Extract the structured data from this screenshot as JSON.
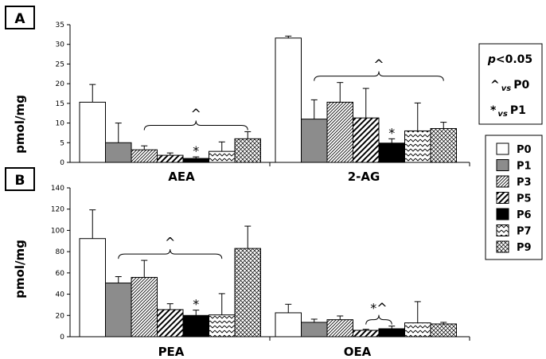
{
  "chart_data": [
    {
      "type": "bar",
      "panel_label": "A",
      "ylabel": "pmol/mg",
      "ylim": [
        0,
        35
      ],
      "yticks": [
        0,
        5,
        10,
        15,
        20,
        25,
        30,
        35
      ],
      "groups": [
        {
          "name": "AEA",
          "values": [
            15.3,
            5.0,
            3.2,
            1.8,
            1.0,
            2.8,
            6.0
          ],
          "errors": [
            4.5,
            5.0,
            1.0,
            0.6,
            0.4,
            2.4,
            1.8
          ],
          "annotations": [
            {
              "text": "*",
              "bar": "P6"
            }
          ],
          "brace": {
            "from": "P3",
            "to": "P9",
            "text": "^"
          }
        },
        {
          "name": "2-AG",
          "values": [
            31.6,
            11.0,
            15.3,
            11.3,
            4.9,
            8.0,
            8.6
          ],
          "errors": [
            0.5,
            4.9,
            5.0,
            7.5,
            1.1,
            7.1,
            1.6
          ],
          "annotations": [
            {
              "text": "*",
              "bar": "P6"
            }
          ],
          "brace": {
            "from": "P1",
            "to": "P9",
            "text": "^"
          }
        }
      ]
    },
    {
      "type": "bar",
      "panel_label": "B",
      "ylabel": "pmol/mg",
      "ylim": [
        0,
        140
      ],
      "yticks": [
        0,
        20,
        40,
        60,
        80,
        100,
        120,
        140
      ],
      "groups": [
        {
          "name": "PEA",
          "values": [
            92.3,
            50.5,
            55.8,
            25.5,
            20.0,
            20.5,
            83.0
          ],
          "errors": [
            27.0,
            6.0,
            16.0,
            5.5,
            5.0,
            20.0,
            21.0
          ],
          "annotations": [
            {
              "text": "*",
              "bar": "P6"
            }
          ],
          "brace": {
            "from": "P1",
            "to": "P7",
            "text": "^"
          }
        },
        {
          "name": "OEA",
          "values": [
            22.5,
            13.5,
            16.0,
            6.0,
            7.5,
            13.0,
            12.0
          ],
          "errors": [
            8.0,
            3.0,
            3.5,
            1.0,
            2.5,
            20.0,
            1.5
          ],
          "annotations": [],
          "brace": {
            "from": "P5",
            "to": "P6",
            "text": "*^"
          }
        }
      ]
    }
  ],
  "series": [
    "P0",
    "P1",
    "P3",
    "P5",
    "P6",
    "P7",
    "P9"
  ],
  "series_styles": {
    "P0": {
      "fill": "#ffffff",
      "pattern": "none"
    },
    "P1": {
      "fill": "#8c8c8c",
      "pattern": "none"
    },
    "P3": {
      "fill": "#ffffff",
      "pattern": "fine-diagonal"
    },
    "P5": {
      "fill": "#ffffff",
      "pattern": "bold-diagonal"
    },
    "P6": {
      "fill": "#000000",
      "pattern": "none"
    },
    "P7": {
      "fill": "#ffffff",
      "pattern": "zigzag"
    },
    "P9": {
      "fill": "#ffffff",
      "pattern": "crosshatch"
    }
  },
  "significance_legend": {
    "title_p": "p",
    "title_rest": "<0.05",
    "line1_symbol": "^",
    "line1_vs": "vs",
    "line1_ref": "P0",
    "line2_symbol": "*",
    "line2_vs": "vs",
    "line2_ref": "P1"
  }
}
